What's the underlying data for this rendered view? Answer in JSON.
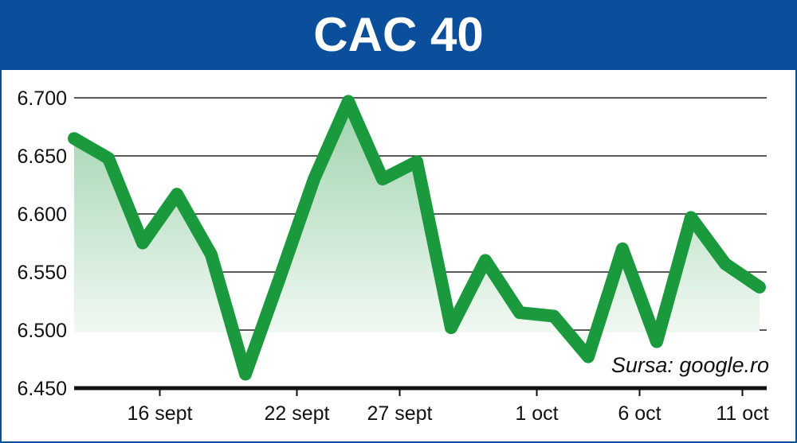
{
  "title": "CAC 40",
  "source": "Sursa: google.ro",
  "colors": {
    "header": "#0b4f9c",
    "line": "#1a9a3c",
    "area_top": "#9fd3ad",
    "area_bottom": "#ffffff",
    "grid": "#222222",
    "axis": "#111111"
  },
  "chart_data": {
    "type": "line",
    "title": "CAC 40",
    "xlabel": "",
    "ylabel": "",
    "ylim": [
      6450,
      6700
    ],
    "y_ticks": [
      6450,
      6500,
      6550,
      6600,
      6650,
      6700
    ],
    "y_tick_labels": [
      "6.450",
      "6.500",
      "6.550",
      "6.600",
      "6.650",
      "6.700"
    ],
    "x_ticks": [
      {
        "index": 2.5,
        "label": "16 sept"
      },
      {
        "index": 6.5,
        "label": "22 sept"
      },
      {
        "index": 9.5,
        "label": "27 sept"
      },
      {
        "index": 13.5,
        "label": "1 oct"
      },
      {
        "index": 16.5,
        "label": "6 oct"
      },
      {
        "index": 19.5,
        "label": "11 oct"
      }
    ],
    "grid": true,
    "fill": "area",
    "series": [
      {
        "values": [
          6665,
          6648,
          6575,
          6617,
          6565,
          6462,
          6545,
          6630,
          6697,
          6630,
          6645,
          6502,
          6560,
          6515,
          6512,
          6477,
          6570,
          6490,
          6597,
          6557,
          6537
        ]
      }
    ]
  }
}
